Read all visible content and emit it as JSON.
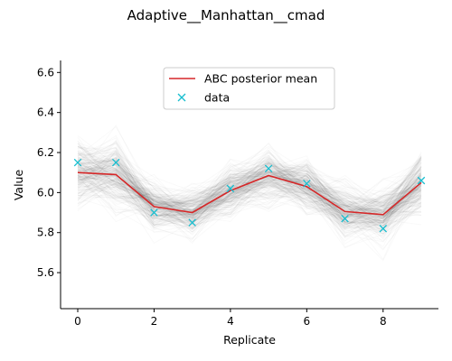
{
  "chart_data": {
    "type": "line",
    "title": "Adaptive__Manhattan__cmad",
    "xlabel": "Replicate",
    "ylabel": "Value",
    "xlim": [
      -0.45,
      9.45
    ],
    "ylim": [
      5.42,
      6.66
    ],
    "x_ticks": [
      0,
      2,
      4,
      6,
      8
    ],
    "y_ticks": [
      5.6,
      5.8,
      6.0,
      6.2,
      6.4,
      6.6
    ],
    "y_tick_labels": [
      "5.6",
      "5.8",
      "6.0",
      "6.2",
      "6.4",
      "6.6"
    ],
    "x": [
      0,
      1,
      2,
      3,
      4,
      5,
      6,
      7,
      8,
      9
    ],
    "series": [
      {
        "name": "ABC posterior mean",
        "style": "line",
        "color": "#d62728",
        "values": [
          6.1,
          6.09,
          5.93,
          5.9,
          6.01,
          6.085,
          6.03,
          5.905,
          5.89,
          6.05
        ]
      },
      {
        "name": "data",
        "style": "x-marker",
        "color": "#17becf",
        "values": [
          6.15,
          6.15,
          5.9,
          5.85,
          6.02,
          6.12,
          6.045,
          5.87,
          5.82,
          6.06
        ]
      }
    ],
    "background_samples": {
      "color": "#000000",
      "count": 260,
      "spread": [
        0.18,
        0.18,
        0.13,
        0.12,
        0.13,
        0.14,
        0.14,
        0.14,
        0.14,
        0.16
      ]
    },
    "legend": {
      "placement": "top-center",
      "entries": [
        "ABC posterior mean",
        "data"
      ]
    },
    "grid": false
  }
}
